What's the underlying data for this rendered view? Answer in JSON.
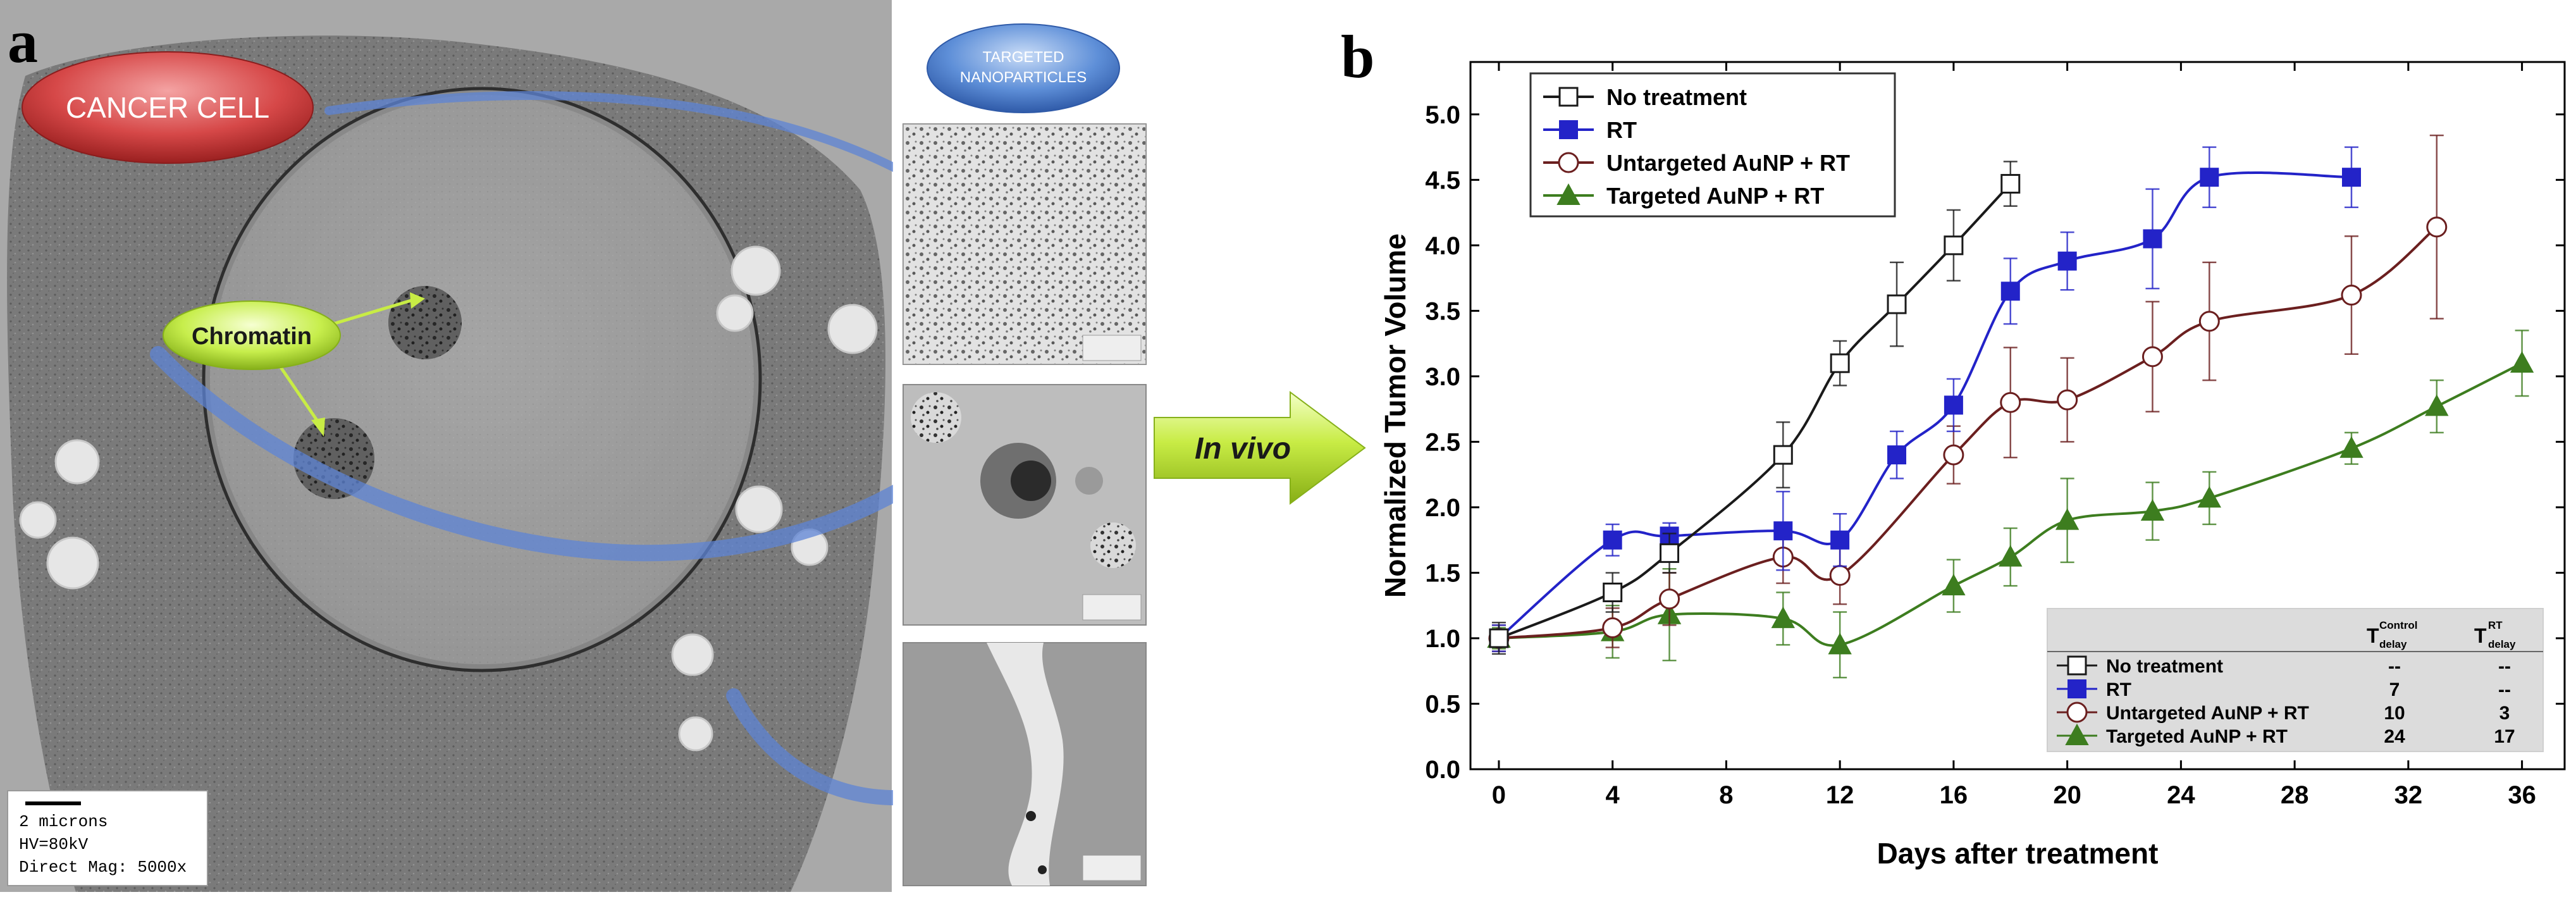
{
  "panel_a": {
    "label": "a",
    "cancer_cell_label": "CANCER CELL",
    "chromatin_label": "Chromatin",
    "targeted_np_label_line1": "TARGETED",
    "targeted_np_label_line2": "NANOPARTICLES",
    "scale_info": {
      "line1": "2 microns",
      "line2": "HV=80kV",
      "line3": "Direct Mag: 5000x"
    }
  },
  "arrow_label": "In vivo",
  "panel_b": {
    "label": "b",
    "legend": [
      "No treatment",
      "RT",
      "Untargeted AuNP + RT",
      "Targeted AuNP + RT"
    ],
    "table": {
      "header_control": "T",
      "header_control_sup": "Control",
      "header_control_sub": "delay",
      "header_rt": "T",
      "header_rt_sup": "RT",
      "header_rt_sub": "delay",
      "rows": [
        {
          "name": "No treatment",
          "control": "--",
          "rt": "--"
        },
        {
          "name": "RT",
          "control": "7",
          "rt": "--"
        },
        {
          "name": "Untargeted AuNP + RT",
          "control": "10",
          "rt": "3"
        },
        {
          "name": "Targeted AuNP + RT",
          "control": "24",
          "rt": "17"
        }
      ]
    }
  },
  "chart_data": {
    "type": "line",
    "xlabel": "Days after treatment",
    "ylabel": "Normalized Tumor Volume",
    "xlim": [
      -1,
      37.5
    ],
    "ylim": [
      0,
      5.4
    ],
    "xticks": [
      0,
      4,
      8,
      12,
      16,
      20,
      24,
      28,
      32,
      36
    ],
    "yticks": [
      0.0,
      0.5,
      1.0,
      1.5,
      2.0,
      2.5,
      3.0,
      3.5,
      4.0,
      4.5,
      5.0
    ],
    "grid": false,
    "legend_position": "top-left",
    "series": [
      {
        "name": "No treatment",
        "color": "#1a1a1a",
        "marker": "open-square",
        "x": [
          0,
          4,
          6,
          10,
          12,
          14,
          16,
          18
        ],
        "y": [
          1.0,
          1.35,
          1.65,
          2.4,
          3.1,
          3.55,
          4.0,
          4.47
        ],
        "err": [
          0.12,
          0.15,
          0.15,
          0.25,
          0.17,
          0.32,
          0.27,
          0.17
        ]
      },
      {
        "name": "RT",
        "color": "#2323c8",
        "marker": "filled-square",
        "x": [
          0,
          4,
          6,
          10,
          12,
          14,
          16,
          18,
          20,
          23,
          25,
          30
        ],
        "y": [
          1.0,
          1.75,
          1.78,
          1.82,
          1.75,
          2.4,
          2.78,
          3.65,
          3.88,
          4.05,
          4.52,
          4.52
        ],
        "err": [
          0.1,
          0.12,
          0.1,
          0.3,
          0.2,
          0.18,
          0.2,
          0.25,
          0.22,
          0.38,
          0.23,
          0.23
        ]
      },
      {
        "name": "Untargeted AuNP + RT",
        "color": "#6b1f1f",
        "marker": "open-circle",
        "x": [
          0,
          4,
          6,
          10,
          12,
          16,
          18,
          20,
          23,
          25,
          30,
          33
        ],
        "y": [
          1.0,
          1.08,
          1.3,
          1.62,
          1.48,
          2.4,
          2.8,
          2.82,
          3.15,
          3.42,
          3.62,
          4.14
        ],
        "err": [
          0.1,
          0.15,
          0.2,
          0.2,
          0.22,
          0.22,
          0.42,
          0.32,
          0.42,
          0.45,
          0.45,
          0.7
        ]
      },
      {
        "name": "Targeted AuNP + RT",
        "color": "#3d7d1f",
        "marker": "filled-triangle",
        "x": [
          0,
          4,
          6,
          10,
          12,
          16,
          18,
          20,
          23,
          25,
          30,
          33,
          36
        ],
        "y": [
          1.0,
          1.05,
          1.18,
          1.15,
          0.95,
          1.4,
          1.62,
          1.9,
          1.97,
          2.07,
          2.45,
          2.77,
          3.1
        ],
        "err": [
          0.08,
          0.2,
          0.35,
          0.2,
          0.25,
          0.2,
          0.22,
          0.32,
          0.22,
          0.2,
          0.12,
          0.2,
          0.25
        ]
      }
    ]
  }
}
